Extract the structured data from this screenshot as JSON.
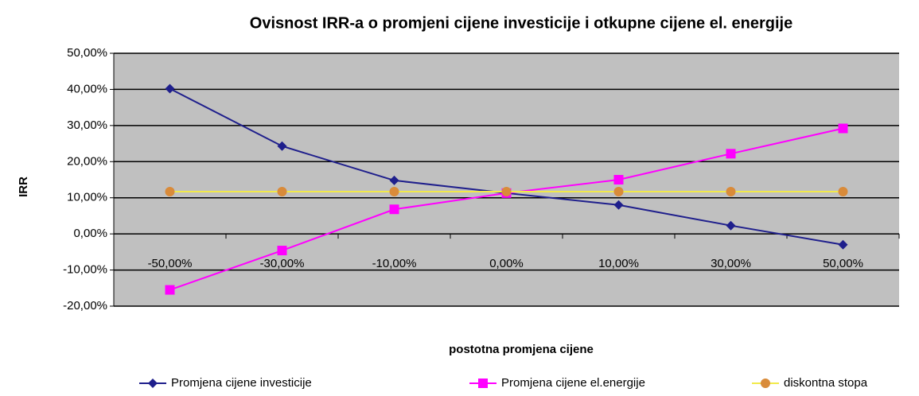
{
  "chart_data": {
    "type": "line",
    "title": "Ovisnost IRR-a o promjeni cijene investicije i otkupne cijene el. energije",
    "x_label": "postotna promjena  cijene",
    "y_label": "IRR",
    "categories": [
      "-50,00%",
      "-30,00%",
      "-10,00%",
      "0,00%",
      "10,00%",
      "30,00%",
      "50,00%"
    ],
    "ylim": [
      -20,
      50
    ],
    "yticks": [
      {
        "value": -20,
        "label": "-20,00%"
      },
      {
        "value": -10,
        "label": "-10,00%"
      },
      {
        "value": 0,
        "label": "0,00%"
      },
      {
        "value": 10,
        "label": "10,00%"
      },
      {
        "value": 20,
        "label": "20,00%"
      },
      {
        "value": 30,
        "label": "30,00%"
      },
      {
        "value": 40,
        "label": "40,00%"
      },
      {
        "value": 50,
        "label": "50,00%"
      }
    ],
    "grid": true,
    "plot_background": "#c0c0c0",
    "legend": "bottom",
    "series": [
      {
        "name": "Promjena cijene investicije",
        "color": "#1f1f8c",
        "marker": "diamond",
        "values": [
          40.2,
          24.3,
          14.8,
          11.3,
          8.0,
          2.3,
          -3.0
        ]
      },
      {
        "name": "Promjena cijene el.energije",
        "color": "#ff00ff",
        "marker": "square",
        "values": [
          -15.5,
          -4.6,
          6.8,
          11.3,
          15.0,
          22.2,
          29.2
        ]
      },
      {
        "name": "diskontna stopa",
        "color": "#f2ea4a",
        "marker": "circle",
        "marker_color": "#d98b3a",
        "values": [
          11.7,
          11.7,
          11.7,
          11.7,
          11.7,
          11.7,
          11.7
        ]
      }
    ]
  }
}
